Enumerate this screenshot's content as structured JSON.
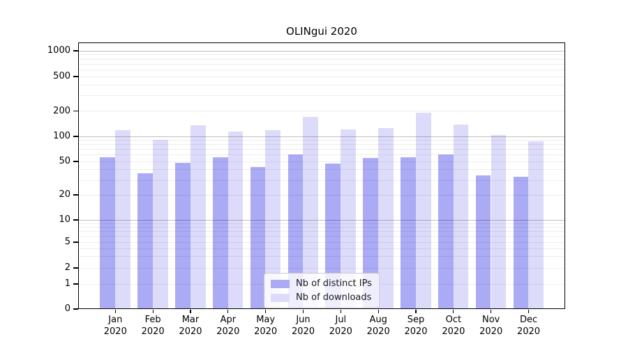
{
  "title": "OLINgui 2020",
  "chart_data": {
    "type": "bar",
    "title": "OLINgui 2020",
    "categories": [
      "Jan 2020",
      "Feb 2020",
      "Mar 2020",
      "Apr 2020",
      "May 2020",
      "Jun 2020",
      "Jul 2020",
      "Aug 2020",
      "Sep 2020",
      "Oct 2020",
      "Nov 2020",
      "Dec 2020"
    ],
    "series": [
      {
        "name": "Nb of distinct IPs",
        "color": "#aaaaf5",
        "values": [
          56,
          36,
          48,
          56,
          43,
          60,
          47,
          55,
          56,
          60,
          34,
          33
        ]
      },
      {
        "name": "Nb of downloads",
        "color": "#dcdcfa",
        "values": [
          118,
          90,
          134,
          114,
          119,
          170,
          121,
          125,
          191,
          138,
          104,
          87
        ]
      }
    ],
    "xlabel": "",
    "ylabel": "",
    "yscale": "symlog",
    "ytick_values": [
      0,
      1,
      2,
      5,
      10,
      20,
      50,
      100,
      200,
      500,
      1000
    ],
    "ylim": [
      0,
      1400
    ],
    "grid": true,
    "grid_minor_values": [
      1,
      2,
      3,
      4,
      5,
      6,
      7,
      8,
      9,
      20,
      30,
      40,
      50,
      60,
      70,
      80,
      90,
      200,
      300,
      400,
      500,
      600,
      700,
      800,
      900
    ],
    "grid_major_values": [
      10,
      100,
      1000
    ],
    "legend_position": "lower center"
  }
}
